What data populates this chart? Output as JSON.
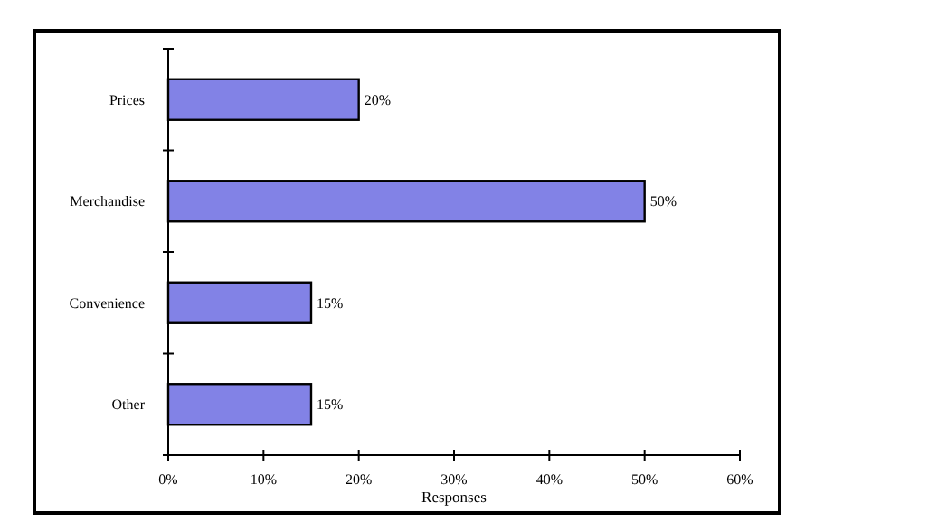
{
  "chart_data": {
    "type": "bar",
    "orientation": "horizontal",
    "xlabel": "Responses",
    "categories": [
      "Prices",
      "Merchandise",
      "Convenience",
      "Other"
    ],
    "values": [
      20,
      50,
      15,
      15
    ],
    "value_labels": [
      "20%",
      "50%",
      "15%",
      "15%"
    ],
    "color": "#8282e6",
    "xlim": [
      0,
      60
    ],
    "xticks": [
      {
        "value": 0,
        "label": "0%"
      },
      {
        "value": 10,
        "label": "10%"
      },
      {
        "value": 20,
        "label": "20%"
      },
      {
        "value": 30,
        "label": "30%"
      },
      {
        "value": 40,
        "label": "40%"
      },
      {
        "value": 50,
        "label": "50%"
      },
      {
        "value": 60,
        "label": "60%"
      }
    ],
    "grid": false
  }
}
